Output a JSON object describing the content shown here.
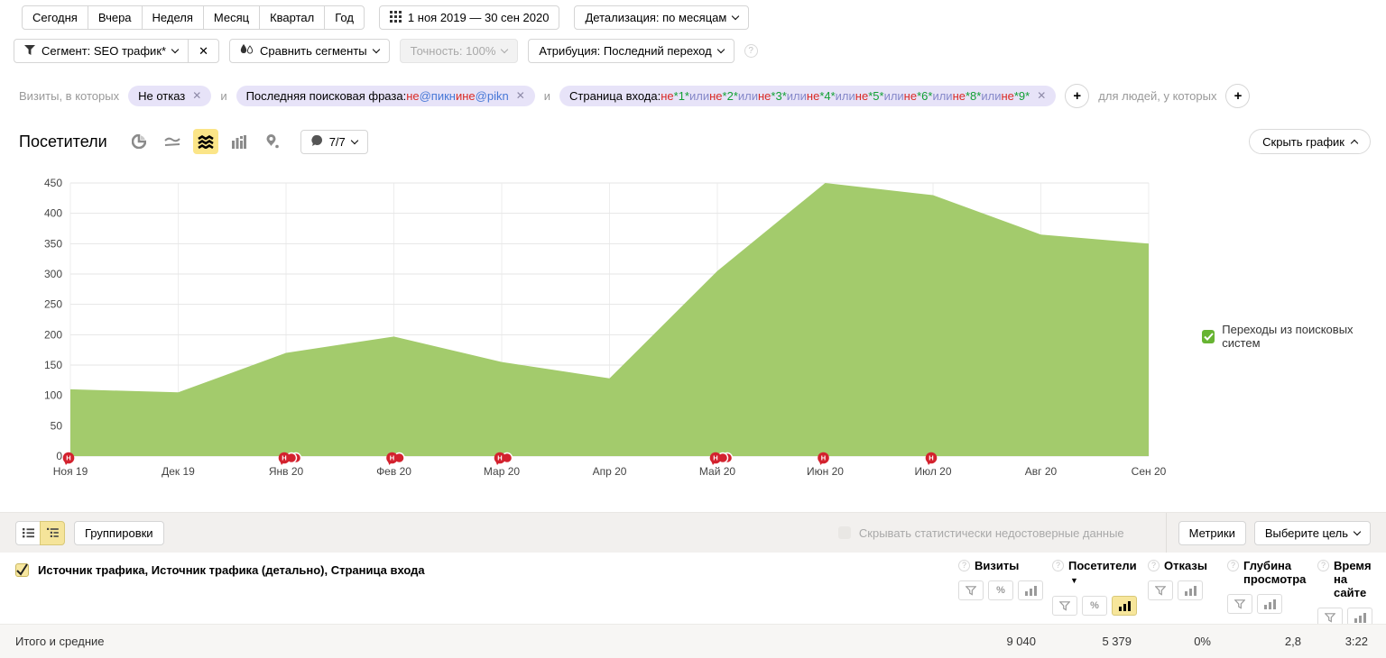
{
  "colors": {
    "area_green": "#a3cb6c",
    "marker_red": "#d3222e",
    "highlight_yellow": "#fbe588",
    "chip_bg": "#e7e3f8",
    "legend_green": "#67b432"
  },
  "toolbar": {
    "periods": [
      "Сегодня",
      "Вчера",
      "Неделя",
      "Месяц",
      "Квартал",
      "Год"
    ],
    "date_range": "1 ноя 2019 — 30 сен 2020",
    "detail": "Детализация: по месяцам",
    "segment": "Сегмент: SEO трафик*",
    "segment_clear": "✕",
    "compare": "Сравнить сегменты",
    "accuracy": "Точность: 100%",
    "attribution": "Атрибуция: Последний переход"
  },
  "filters": {
    "prefix": "Визиты, в которых",
    "and_label": "и",
    "people_label": "для людей, у которых",
    "chips": [
      {
        "name": "not-bounce",
        "parts": [
          {
            "t": "Не отказ",
            "s": "plain"
          }
        ]
      },
      {
        "name": "last-search-phrase",
        "parts": [
          {
            "t": "Последняя поисковая фраза: ",
            "s": "plain"
          },
          {
            "t": "не ",
            "s": "not"
          },
          {
            "t": "@пикн",
            "s": "link"
          },
          {
            "t": " и ",
            "s": "not"
          },
          {
            "t": "не ",
            "s": "not"
          },
          {
            "t": "@pikn",
            "s": "link"
          }
        ]
      },
      {
        "name": "entry-page",
        "parts": [
          {
            "t": "Страница входа: ",
            "s": "plain"
          },
          {
            "t": "не ",
            "s": "not"
          },
          {
            "t": "*1*",
            "s": "val"
          },
          {
            "t": " или ",
            "s": "op"
          },
          {
            "t": "не ",
            "s": "not"
          },
          {
            "t": "*2*",
            "s": "val"
          },
          {
            "t": " или ",
            "s": "op"
          },
          {
            "t": "не ",
            "s": "not"
          },
          {
            "t": "*3*",
            "s": "val"
          },
          {
            "t": " или ",
            "s": "op"
          },
          {
            "t": "не ",
            "s": "not"
          },
          {
            "t": "*4*",
            "s": "val"
          },
          {
            "t": " или ",
            "s": "op"
          },
          {
            "t": "не ",
            "s": "not"
          },
          {
            "t": "*5*",
            "s": "val"
          },
          {
            "t": " или ",
            "s": "op"
          },
          {
            "t": "не ",
            "s": "not"
          },
          {
            "t": "*6*",
            "s": "val"
          },
          {
            "t": " или ",
            "s": "op"
          },
          {
            "t": "не ",
            "s": "not"
          },
          {
            "t": "*8*",
            "s": "val"
          },
          {
            "t": " или ",
            "s": "op"
          },
          {
            "t": "не ",
            "s": "not"
          },
          {
            "t": "*9*",
            "s": "val"
          }
        ]
      }
    ]
  },
  "chart_header": {
    "title": "Посетители",
    "bubble_count": "7/7",
    "hide_label": "Скрыть график"
  },
  "chart_data": {
    "type": "area",
    "title": "Посетители",
    "categories": [
      "Ноя 19",
      "Дек 19",
      "Янв 20",
      "Фев 20",
      "Мар 20",
      "Апр 20",
      "Май 20",
      "Июн 20",
      "Июл 20",
      "Авг 20",
      "Сен 20"
    ],
    "series": [
      {
        "name": "Переходы из поисковых систем",
        "values": [
          110,
          105,
          170,
          197,
          155,
          128,
          305,
          450,
          430,
          365,
          350
        ]
      }
    ],
    "ylim": [
      0,
      450
    ],
    "ytick_step": 50,
    "grid": true,
    "legend_position": "right",
    "marker_letter": "H",
    "markers": [
      {
        "category": "Ноя 19",
        "count": 1
      },
      {
        "category": "Янв 20",
        "count": 3
      },
      {
        "category": "Фев 20",
        "count": 2
      },
      {
        "category": "Мар 20",
        "count": 2
      },
      {
        "category": "Май 20",
        "count": 3
      },
      {
        "category": "Июн 20",
        "count": 1
      },
      {
        "category": "Июл 20",
        "count": 1
      }
    ]
  },
  "legend": {
    "label": "Переходы из поисковых систем"
  },
  "table": {
    "toolbar": {
      "groupings": "Группировки",
      "hide_unreliable": "Скрывать статистически недостоверные данные",
      "metrics_btn": "Метрики",
      "goal_btn": "Выберите цель"
    },
    "grouping_label": "Источник трафика, Источник трафика (детально), Страница входа",
    "totals_label": "Итого и средние",
    "metrics": [
      {
        "label": "Визиты",
        "sorted": false,
        "tools": [
          "filter",
          "percent",
          "bars"
        ],
        "active": null,
        "total": "9 040"
      },
      {
        "label": "Посетители",
        "sorted": true,
        "tools": [
          "filter",
          "percent",
          "bars"
        ],
        "active": "bars",
        "total": "5 379"
      },
      {
        "label": "Отказы",
        "sorted": false,
        "tools": [
          "filter",
          "bars"
        ],
        "active": null,
        "total": "0%"
      },
      {
        "label": "Глубина просмотра",
        "sorted": false,
        "tools": [
          "filter",
          "bars"
        ],
        "active": null,
        "total": "2,8"
      },
      {
        "label": "Время на сайте",
        "sorted": false,
        "tools": [
          "filter",
          "bars"
        ],
        "active": null,
        "total": "3:22"
      }
    ]
  }
}
